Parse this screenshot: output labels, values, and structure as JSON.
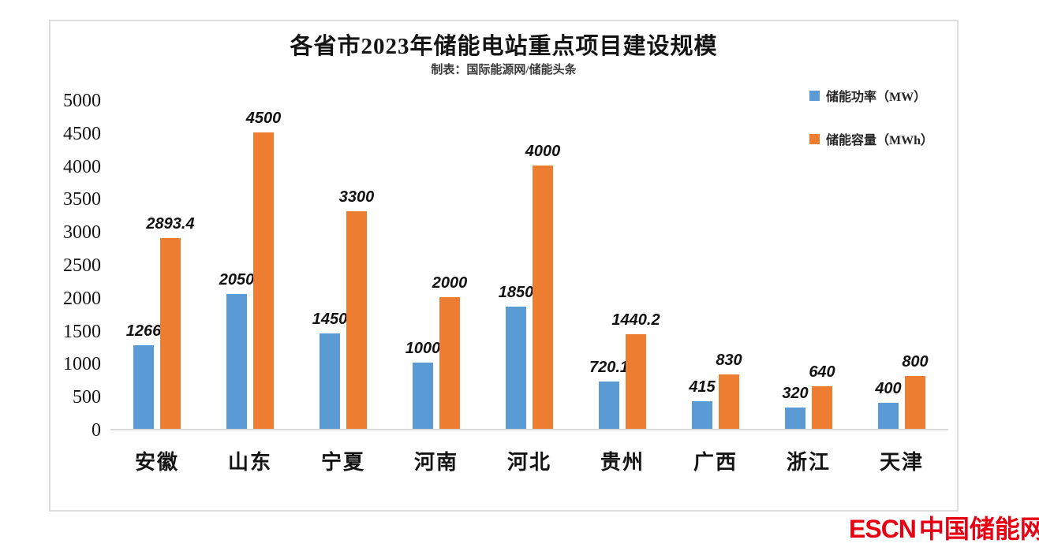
{
  "chart_data": {
    "type": "bar",
    "title": "各省市2023年储能电站重点项目建设规模",
    "subtitle": "制表：国际能源网/储能头条",
    "categories": [
      "安徽",
      "山东",
      "宁夏",
      "河南",
      "河北",
      "贵州",
      "广西",
      "浙江",
      "天津"
    ],
    "series": [
      {
        "name": "储能功率（MW）",
        "color": "#5B9BD5",
        "values": [
          1266,
          2050,
          1450,
          1000,
          1850,
          720.1,
          415,
          320,
          400
        ]
      },
      {
        "name": "储能容量（MWh）",
        "color": "#ED7D31",
        "values": [
          2893.4,
          4500,
          3300,
          2000,
          4000,
          1440.2,
          830,
          640,
          800
        ]
      }
    ],
    "ylim": [
      0,
      5000
    ],
    "ytick_step": 500,
    "yticks": [
      0,
      500,
      1000,
      1500,
      2000,
      2500,
      3000,
      3500,
      4000,
      4500,
      5000
    ],
    "grid": false,
    "legend_position": "top-right",
    "axis_color": "#D9D9D9",
    "label_color": "#111111"
  },
  "footer_logo": {
    "latin": "ESCN",
    "chinese": "中国储能网",
    "color": "#E60012"
  }
}
